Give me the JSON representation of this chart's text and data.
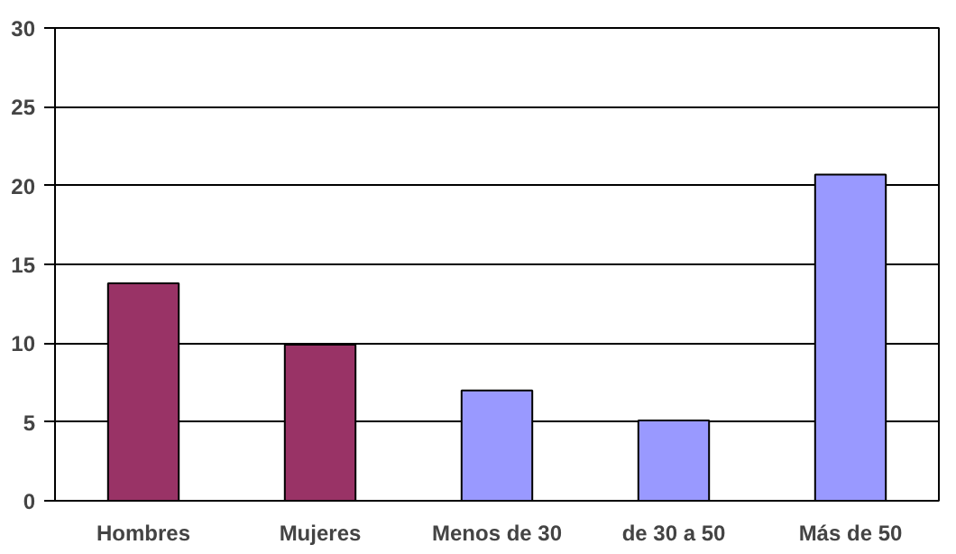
{
  "chart_data": {
    "type": "bar",
    "categories": [
      "Hombres",
      "Mujeres",
      "Menos de 30",
      "de 30 a 50",
      "Más de 50"
    ],
    "values": [
      13.8,
      9.9,
      7.0,
      5.1,
      20.7
    ],
    "colors": [
      "#993366",
      "#993366",
      "#9999ff",
      "#9999ff",
      "#9999ff"
    ],
    "ylim": [
      0,
      30
    ],
    "yticks": [
      0,
      5,
      10,
      15,
      20,
      25,
      30
    ],
    "grid": "y"
  }
}
